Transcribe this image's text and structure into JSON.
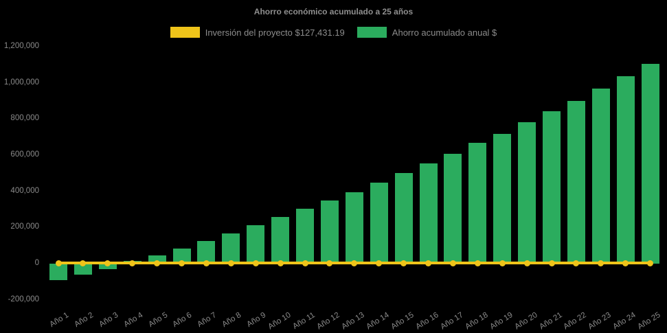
{
  "chart": {
    "title": "Ahorro económico acumulado a 25 años",
    "legend": [
      {
        "label": "Inversión del proyecto $127,431.19",
        "color": "#EFC41A"
      },
      {
        "label": "Ahorro acumulado anual $",
        "color": "#2BAC5E"
      }
    ],
    "background": "#000000",
    "text_color": "#8a8a8a"
  },
  "chart_data": {
    "type": "bar",
    "title": "Ahorro económico acumulado a 25 años",
    "xlabel": "",
    "ylabel": "",
    "categories": [
      "Año 1",
      "Año 2",
      "Año 3",
      "Año 4",
      "Año 5",
      "Año 6",
      "Año 7",
      "Año 8",
      "Año 9",
      "Año 10",
      "Año 11",
      "Año 12",
      "Año 13",
      "Año 14",
      "Año 15",
      "Año 16",
      "Año 17",
      "Año 18",
      "Año 19",
      "Año 20",
      "Año 21",
      "Año 22",
      "Año 23",
      "Año 24",
      "Año 25"
    ],
    "series": [
      {
        "name": "Inversión del proyecto $127,431.19",
        "type": "line",
        "color": "#EFC41A",
        "values": [
          0,
          0,
          0,
          0,
          0,
          0,
          0,
          0,
          0,
          0,
          0,
          0,
          0,
          0,
          0,
          0,
          0,
          0,
          0,
          0,
          0,
          0,
          0,
          0,
          0
        ]
      },
      {
        "name": "Ahorro acumulado anual $",
        "type": "bar",
        "color": "#2BAC5E",
        "values": [
          -92000,
          -62000,
          -31000,
          15000,
          45000,
          84000,
          126000,
          168000,
          214000,
          260000,
          304000,
          350000,
          395000,
          449000,
          500000,
          553000,
          606000,
          667000,
          718000,
          781000,
          844000,
          901000,
          967000,
          1036000,
          1104000
        ]
      }
    ],
    "ylim": [
      -200000,
      1200000
    ],
    "yticks": {
      "values": [
        -200000,
        0,
        200000,
        400000,
        600000,
        800000,
        1000000,
        1200000
      ],
      "labels": [
        "-200,000",
        "0",
        "200,000",
        "400,000",
        "600,000",
        "800,000",
        "1,000,000",
        "1,200,000"
      ]
    },
    "grid": false,
    "legend_position": "top"
  }
}
